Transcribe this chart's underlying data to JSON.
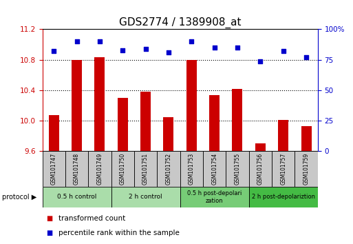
{
  "title": "GDS2774 / 1389908_at",
  "samples": [
    "GSM101747",
    "GSM101748",
    "GSM101749",
    "GSM101750",
    "GSM101751",
    "GSM101752",
    "GSM101753",
    "GSM101754",
    "GSM101755",
    "GSM101756",
    "GSM101757",
    "GSM101759"
  ],
  "transformed_count": [
    10.07,
    10.8,
    10.83,
    10.3,
    10.38,
    10.05,
    10.8,
    10.34,
    10.42,
    9.7,
    10.01,
    9.93
  ],
  "percentile_rank": [
    82,
    90,
    90,
    83,
    84,
    81,
    90,
    85,
    85,
    74,
    82,
    77
  ],
  "ylim_left": [
    9.6,
    11.2
  ],
  "ylim_right": [
    0,
    100
  ],
  "yticks_left": [
    9.6,
    10.0,
    10.4,
    10.8,
    11.2
  ],
  "yticks_right": [
    0,
    25,
    50,
    75,
    100
  ],
  "bar_color": "#cc0000",
  "dot_color": "#0000cc",
  "bg_plot": "#ffffff",
  "bg_sample": "#c8c8c8",
  "protocol_groups": [
    {
      "label": "0.5 h control",
      "start": 0,
      "end": 3,
      "color": "#aaddaa"
    },
    {
      "label": "2 h control",
      "start": 3,
      "end": 6,
      "color": "#aaddaa"
    },
    {
      "label": "0.5 h post-depolarization",
      "start": 6,
      "end": 9,
      "color": "#77cc77"
    },
    {
      "label": "2 h post-depolariztion",
      "start": 9,
      "end": 12,
      "color": "#44bb44"
    }
  ],
  "title_fontsize": 11,
  "tick_fontsize": 7.5,
  "sample_fontsize": 5.5,
  "proto_fontsize": 6.5,
  "legend_fontsize": 7.5
}
